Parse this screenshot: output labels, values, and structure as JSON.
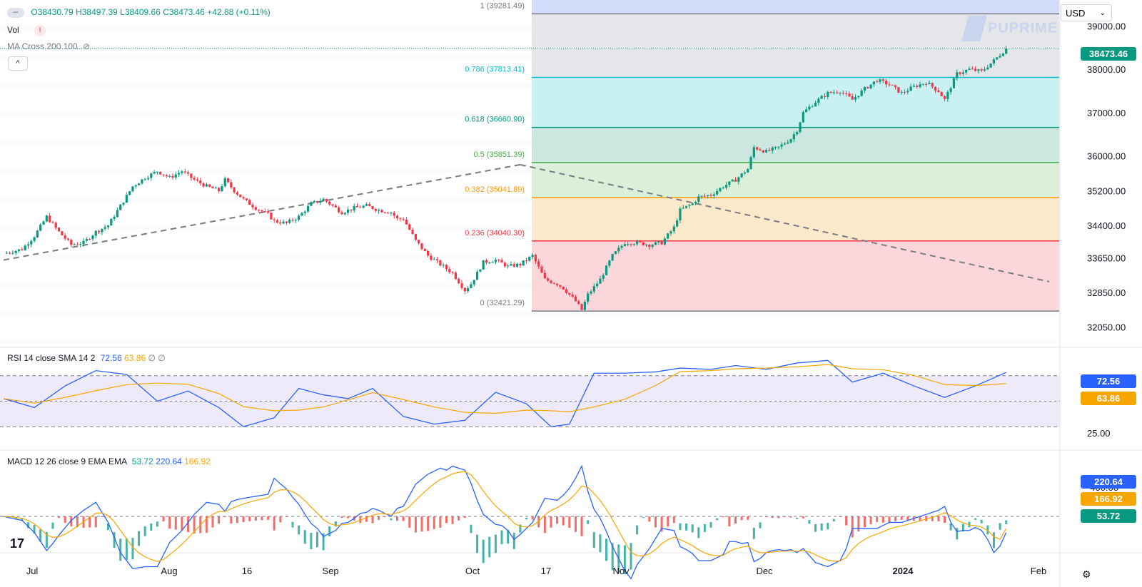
{
  "header": {
    "ohlc": {
      "o": "O38430.79",
      "h": "H38497.39",
      "l": "L38409.66",
      "c": "C38473.46",
      "chg": "+42.88 (+0.11%)"
    },
    "vol_label": "Vol",
    "ma_label": "MA Cross 200 100",
    "currency": "USD",
    "watermark": "PUPRIME"
  },
  "colors": {
    "up": "#089981",
    "down": "#f23645",
    "rsi": "#2962ff",
    "sma": "#f7a600",
    "grid": "#f0f3fa",
    "axis_text": "#131722"
  },
  "price_axis": {
    "ticks": [
      "39000.00",
      "38000.00",
      "37000.00",
      "36000.00",
      "35200.00",
      "34400.00",
      "33650.00",
      "32850.00",
      "32050.00"
    ],
    "current": "38473.46"
  },
  "fib": [
    {
      "label": "1 (39281.49)",
      "level": 39281.49,
      "color": "#787b86"
    },
    {
      "label": "0.786 (37813.41)",
      "level": 37813.41,
      "color": "#00bcd4"
    },
    {
      "label": "0.618 (36660.90)",
      "level": 36660.9,
      "color": "#089981"
    },
    {
      "label": "0.5 (35851.39)",
      "level": 35851.39,
      "color": "#4caf50"
    },
    {
      "label": "0.382 (35041.89)",
      "level": 35041.89,
      "color": "#ff9800"
    },
    {
      "label": "0.236 (34040.30)",
      "level": 34040.3,
      "color": "#f23645"
    },
    {
      "label": "0 (32421.29)",
      "level": 32421.29,
      "color": "#787b86"
    }
  ],
  "rsi": {
    "legend": "RSI 14 close SMA 14 2",
    "v1": "72.56",
    "v2": "63.86",
    "v3": "∅ ∅",
    "ticks": [
      "50.00",
      "25.00"
    ],
    "badge1": "72.56",
    "badge2": "63.86"
  },
  "macd": {
    "legend": "MACD 12 26 close 9 EMA EMA",
    "v1": "53.72",
    "v2": "220.64",
    "v3": "166.92",
    "ticks": [
      "-400.00"
    ],
    "badge1": "220.64",
    "badge2": "166.92",
    "badge3": "53.72"
  },
  "time_axis": [
    "Jul",
    "Aug",
    "16",
    "Sep",
    "Oct",
    "17",
    "Nov",
    "Dec",
    "2024",
    "Feb"
  ],
  "chart_data": {
    "type": "candlestick",
    "symbol_currency": "USD",
    "ohlc_last": {
      "open": 38430.79,
      "high": 38497.39,
      "low": 38409.66,
      "close": 38473.46,
      "change": 42.88,
      "change_pct": 0.11
    },
    "ylim": [
      31700,
      39600
    ],
    "x_labels": [
      "Jul",
      "Aug",
      "16",
      "Sep",
      "Oct",
      "17",
      "Nov",
      "Dec",
      "2024",
      "Feb"
    ],
    "close_path": [
      [
        0,
        33750
      ],
      [
        6,
        33850
      ],
      [
        10,
        34150
      ],
      [
        14,
        34600
      ],
      [
        18,
        34250
      ],
      [
        22,
        33950
      ],
      [
        26,
        34000
      ],
      [
        30,
        34250
      ],
      [
        34,
        34400
      ],
      [
        38,
        34850
      ],
      [
        42,
        35300
      ],
      [
        46,
        35500
      ],
      [
        50,
        35650
      ],
      [
        54,
        35500
      ],
      [
        58,
        35650
      ],
      [
        62,
        35450
      ],
      [
        66,
        35300
      ],
      [
        70,
        35200
      ],
      [
        72,
        35450
      ],
      [
        75,
        35200
      ],
      [
        78,
        35000
      ],
      [
        82,
        34800
      ],
      [
        86,
        34650
      ],
      [
        88,
        34500
      ],
      [
        92,
        34450
      ],
      [
        96,
        34600
      ],
      [
        100,
        34900
      ],
      [
        104,
        35000
      ],
      [
        108,
        34800
      ],
      [
        110,
        34700
      ],
      [
        114,
        34800
      ],
      [
        118,
        34850
      ],
      [
        122,
        34750
      ],
      [
        126,
        34700
      ],
      [
        128,
        34550
      ],
      [
        130,
        34550
      ],
      [
        134,
        34050
      ],
      [
        138,
        33700
      ],
      [
        142,
        33500
      ],
      [
        146,
        33300
      ],
      [
        148,
        33100
      ],
      [
        150,
        32900
      ],
      [
        152,
        33050
      ],
      [
        156,
        33550
      ],
      [
        160,
        33600
      ],
      [
        164,
        33450
      ],
      [
        168,
        33500
      ],
      [
        172,
        33700
      ],
      [
        176,
        33150
      ],
      [
        180,
        33050
      ],
      [
        182,
        32950
      ],
      [
        184,
        32800
      ],
      [
        186,
        32650
      ],
      [
        188,
        32450
      ],
      [
        190,
        32800
      ],
      [
        194,
        33150
      ],
      [
        198,
        33700
      ],
      [
        202,
        34000
      ],
      [
        206,
        34000
      ],
      [
        210,
        33950
      ],
      [
        214,
        34000
      ],
      [
        218,
        34350
      ],
      [
        220,
        34750
      ],
      [
        224,
        34900
      ],
      [
        226,
        35050
      ],
      [
        230,
        35100
      ],
      [
        234,
        35300
      ],
      [
        238,
        35450
      ],
      [
        242,
        35700
      ],
      [
        244,
        36200
      ],
      [
        248,
        36100
      ],
      [
        252,
        36200
      ],
      [
        256,
        36400
      ],
      [
        258,
        36600
      ],
      [
        260,
        37000
      ],
      [
        264,
        37250
      ],
      [
        268,
        37450
      ],
      [
        272,
        37500
      ],
      [
        276,
        37300
      ],
      [
        280,
        37550
      ],
      [
        284,
        37750
      ],
      [
        288,
        37650
      ],
      [
        292,
        37450
      ],
      [
        296,
        37600
      ],
      [
        300,
        37700
      ],
      [
        304,
        37500
      ],
      [
        306,
        37300
      ],
      [
        308,
        37600
      ],
      [
        310,
        37900
      ],
      [
        314,
        38000
      ],
      [
        318,
        37950
      ],
      [
        322,
        38200
      ],
      [
        326,
        38473
      ]
    ],
    "fibonacci_levels": [
      {
        "ratio": 1,
        "value": 39281.49
      },
      {
        "ratio": 0.786,
        "value": 37813.41
      },
      {
        "ratio": 0.618,
        "value": 36660.9
      },
      {
        "ratio": 0.5,
        "value": 35851.39
      },
      {
        "ratio": 0.382,
        "value": 35041.89
      },
      {
        "ratio": 0.236,
        "value": 34040.3
      },
      {
        "ratio": 0,
        "value": 32421.29
      }
    ],
    "trendlines": [
      {
        "from": [
          0,
          33600
        ],
        "to": [
          168,
          35800
        ]
      },
      {
        "from": [
          168,
          35800
        ],
        "to": [
          340,
          33100
        ]
      }
    ],
    "rsi": {
      "period": 14,
      "last": 72.56,
      "sma_last": 63.86,
      "levels": [
        70,
        50,
        30
      ],
      "series": [
        [
          0,
          52
        ],
        [
          10,
          45
        ],
        [
          20,
          62
        ],
        [
          30,
          74
        ],
        [
          40,
          71
        ],
        [
          50,
          50
        ],
        [
          60,
          58
        ],
        [
          70,
          45
        ],
        [
          78,
          30
        ],
        [
          88,
          37
        ],
        [
          96,
          60
        ],
        [
          104,
          55
        ],
        [
          112,
          52
        ],
        [
          120,
          60
        ],
        [
          130,
          38
        ],
        [
          140,
          32
        ],
        [
          150,
          35
        ],
        [
          160,
          57
        ],
        [
          170,
          48
        ],
        [
          178,
          30
        ],
        [
          184,
          32
        ],
        [
          192,
          72
        ],
        [
          202,
          72
        ],
        [
          212,
          73
        ],
        [
          220,
          76
        ],
        [
          230,
          75
        ],
        [
          238,
          78
        ],
        [
          248,
          75
        ],
        [
          258,
          80
        ],
        [
          268,
          82
        ],
        [
          276,
          65
        ],
        [
          286,
          72
        ],
        [
          296,
          62
        ],
        [
          306,
          53
        ],
        [
          316,
          62
        ],
        [
          326,
          72.56
        ]
      ]
    },
    "macd": {
      "fast": 12,
      "slow": 26,
      "signal": 9,
      "hist_last": 53.72,
      "macd_last": 220.64,
      "signal_last": 166.92
    }
  }
}
